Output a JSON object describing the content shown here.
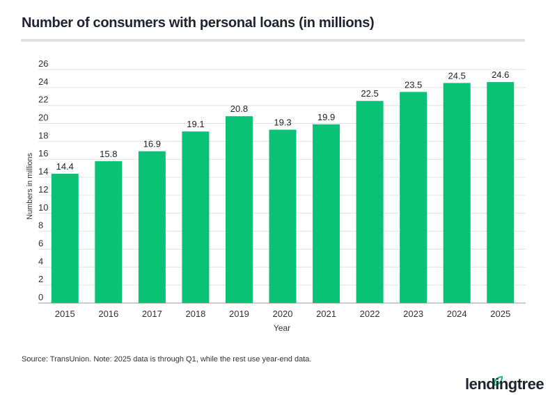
{
  "title": "Number of consumers with personal loans (in millions)",
  "source": "Source: TransUnion. Note: 2025 data is through Q1, while the rest use year-end data.",
  "logo": "lendingtree",
  "chart_data": {
    "type": "bar",
    "categories": [
      "2015",
      "2016",
      "2017",
      "2018",
      "2019",
      "2020",
      "2021",
      "2022",
      "2023",
      "2024",
      "2025"
    ],
    "values": [
      14.4,
      15.8,
      16.9,
      19.1,
      20.8,
      19.3,
      19.9,
      22.5,
      23.5,
      24.5,
      24.6
    ],
    "data_labels": [
      "14.4",
      "15.8",
      "16.9",
      "19.1",
      "20.8",
      "19.3",
      "19.9",
      "22.5",
      "23.5",
      "24.5",
      "24.6"
    ],
    "title": "Number of consumers with personal loans (in millions)",
    "xlabel": "Year",
    "ylabel": "Numbers in millions",
    "ylim": [
      0,
      26
    ],
    "yticks": [
      0,
      2,
      4,
      6,
      8,
      10,
      12,
      14,
      16,
      18,
      20,
      22,
      24,
      26
    ],
    "grid": true,
    "bar_color": "#0ac275"
  }
}
